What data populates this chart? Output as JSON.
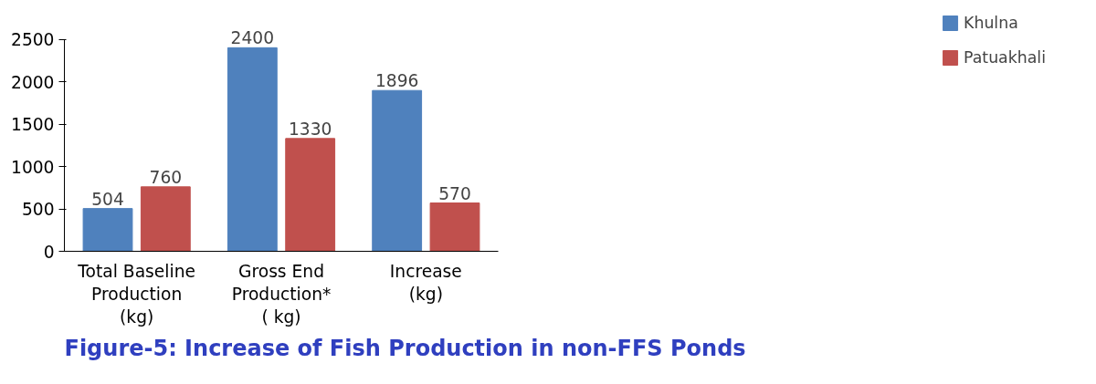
{
  "chart_data": {
    "type": "bar",
    "title": "Figure-5: Increase of Fish Production in non-FFS Ponds",
    "categories": [
      "Total Baseline\nProduction\n(kg)",
      "Gross End\nProduction*\n( kg)",
      "Increase\n(kg)"
    ],
    "series": [
      {
        "name": "Khulna",
        "color": "#4f81bd",
        "values": [
          504,
          2400,
          1896
        ]
      },
      {
        "name": "Patuakhali",
        "color": "#c0504d",
        "values": [
          760,
          1330,
          570
        ]
      }
    ],
    "ylim": [
      0,
      2500
    ],
    "yticks": [
      0,
      500,
      1000,
      1500,
      2000,
      2500
    ],
    "data_labels": true,
    "legend": "right",
    "grid": false
  }
}
